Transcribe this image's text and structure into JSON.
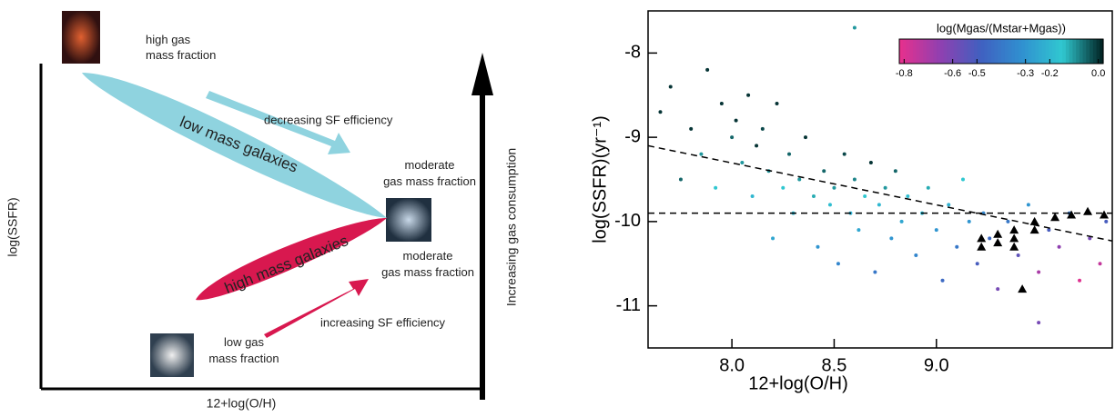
{
  "diagram": {
    "top_label": [
      "high gas",
      "mass fraction"
    ],
    "upper_arrow_label": "decreasing SF efficiency",
    "low_mass_band": "low mass galaxies",
    "middle_upper_label": [
      "moderate",
      "gas mass  fraction"
    ],
    "high_mass_band": "high mass galaxies",
    "middle_lower_label": [
      "moderate",
      "gas mass fraction"
    ],
    "lower_arrow_label": "increasing SF efficiency",
    "bottom_label": [
      "low  gas",
      "mass fraction"
    ],
    "y_axis_label": "log(SSFR)",
    "x_axis_label": "12+log(O/H)",
    "vertical_arrow_label": "Increasing gas consumption"
  },
  "chart_data": {
    "type": "scatter",
    "x_label": "12+log(O/H)",
    "y_label": "log(SSFR)(yr⁻¹)",
    "xlim": [
      7.59,
      9.86
    ],
    "ylim": [
      -11.5,
      -7.5
    ],
    "xticks": [
      {
        "value": 8,
        "label": "8.0"
      },
      {
        "value": 8.5,
        "label": "8.5"
      },
      {
        "value": 9,
        "label": "9.0"
      }
    ],
    "yticks": [
      -8,
      -9,
      -10,
      -11
    ],
    "colorbar": {
      "title": "log(Mgas/(Mstar+Mgas))",
      "clim": [
        -0.82,
        0.02
      ],
      "colormap": [
        "#e8308c",
        "#9040b0",
        "#4060c0",
        "#3090d0",
        "#30c8d0",
        "#002020"
      ],
      "ticks": [
        -0.8,
        -0.6,
        -0.5,
        -0.3,
        -0.2,
        {
          "value": 0,
          "label": "0.0"
        }
      ]
    },
    "points": {
      "x": [
        7.65,
        7.7,
        7.75,
        7.8,
        7.85,
        7.88,
        7.92,
        7.95,
        8.0,
        8.02,
        8.05,
        8.08,
        8.1,
        8.12,
        8.15,
        8.18,
        8.2,
        8.22,
        8.25,
        8.28,
        8.3,
        8.33,
        8.36,
        8.4,
        8.42,
        8.45,
        8.48,
        8.5,
        8.52,
        8.55,
        8.58,
        8.6,
        8.62,
        8.65,
        8.68,
        8.7,
        8.72,
        8.75,
        8.78,
        8.8,
        8.83,
        8.86,
        8.9,
        8.93,
        8.96,
        9.0,
        9.03,
        9.06,
        9.1,
        9.13,
        9.16,
        9.2,
        9.23,
        9.26,
        9.3,
        9.35,
        9.4,
        9.45,
        9.5,
        9.55,
        9.6,
        9.65,
        9.7,
        9.75,
        9.8,
        9.83,
        8.6,
        9.5
      ],
      "y": [
        -8.7,
        -8.4,
        -9.5,
        -8.9,
        -9.2,
        -8.2,
        -9.6,
        -8.6,
        -9.0,
        -8.8,
        -9.3,
        -8.5,
        -9.7,
        -9.1,
        -8.9,
        -9.4,
        -10.2,
        -8.6,
        -9.6,
        -9.2,
        -9.9,
        -9.5,
        -9.0,
        -9.7,
        -10.3,
        -9.4,
        -9.8,
        -9.6,
        -10.5,
        -9.2,
        -9.9,
        -9.5,
        -10.1,
        -9.7,
        -9.3,
        -10.6,
        -9.8,
        -9.6,
        -10.2,
        -9.4,
        -10.0,
        -9.7,
        -10.4,
        -9.9,
        -9.6,
        -10.1,
        -10.7,
        -9.8,
        -10.3,
        -9.5,
        -10.0,
        -10.5,
        -9.9,
        -10.2,
        -10.8,
        -10.0,
        -10.4,
        -9.8,
        -10.6,
        -10.1,
        -10.3,
        -9.9,
        -10.7,
        -10.2,
        -10.5,
        -10.0,
        -7.7,
        -11.2
      ],
      "c": [
        0,
        0,
        -0.05,
        0,
        -0.1,
        0,
        -0.15,
        0,
        -0.05,
        0,
        -0.1,
        0,
        -0.2,
        0,
        -0.02,
        -0.1,
        -0.25,
        0,
        -0.15,
        -0.05,
        -0.2,
        -0.1,
        0,
        -0.12,
        -0.3,
        -0.05,
        -0.18,
        -0.1,
        -0.35,
        -0.02,
        -0.22,
        -0.08,
        -0.25,
        -0.15,
        0,
        -0.4,
        -0.2,
        -0.1,
        -0.3,
        -0.05,
        -0.25,
        -0.18,
        -0.35,
        -0.2,
        -0.12,
        -0.3,
        -0.45,
        -0.22,
        -0.4,
        -0.15,
        -0.3,
        -0.5,
        -0.35,
        -0.45,
        -0.6,
        -0.4,
        -0.55,
        -0.3,
        -0.7,
        -0.5,
        -0.65,
        -0.4,
        -0.8,
        -0.6,
        -0.75,
        -0.5,
        -0.1,
        -0.6
      ]
    },
    "triangles": {
      "color": "#000000",
      "x": [
        9.22,
        9.22,
        9.3,
        9.3,
        9.38,
        9.38,
        9.38,
        9.48,
        9.48,
        9.58,
        9.66,
        9.74,
        9.82,
        9.42
      ],
      "y": [
        -10.2,
        -10.3,
        -10.25,
        -10.15,
        -10.1,
        -10.2,
        -10.3,
        -10.0,
        -10.1,
        -9.95,
        -9.92,
        -9.88,
        -9.92,
        -10.8
      ]
    },
    "dashed_lines": [
      {
        "x": [
          7.59,
          9.86
        ],
        "y": [
          -9.9,
          -9.9
        ]
      },
      {
        "x": [
          7.59,
          9.86
        ],
        "y": [
          -9.1,
          -10.23
        ]
      }
    ]
  }
}
